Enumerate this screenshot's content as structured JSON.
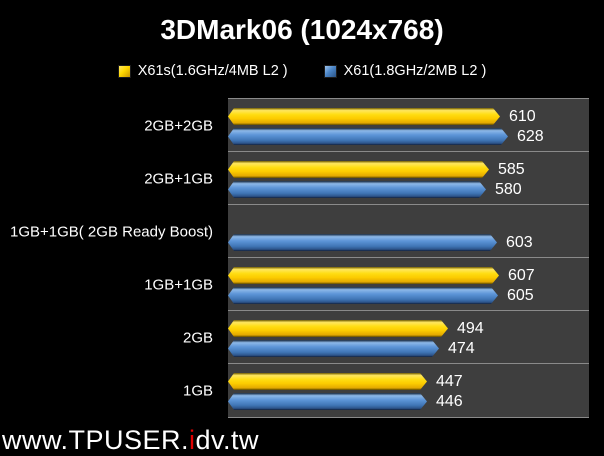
{
  "page_bg": "#000000",
  "chart_data": {
    "type": "bar",
    "orientation": "horizontal",
    "title": "3DMark06 (1024x768)",
    "categories": [
      "2GB+2GB",
      "2GB+1GB",
      "1GB+1GB( 2GB Ready Boost)",
      "1GB+1GB",
      "2GB",
      "1GB"
    ],
    "series": [
      {
        "name": "X61s(1.6GHz/4MB L2 )",
        "color": "#FFD800",
        "values": [
          610,
          585,
          null,
          607,
          494,
          447
        ]
      },
      {
        "name": "X61(1.8GHz/2MB L2 )",
        "color": "#4C86C8",
        "values": [
          628,
          580,
          603,
          605,
          474,
          446
        ]
      }
    ],
    "xlim": [
      0,
      810
    ],
    "legend_position": "top-center",
    "grid": "horizontal-band-separators",
    "plot_bg": "#3E3E3E",
    "separator_color": "#8a8a8a",
    "value_label_color": "#ffffff"
  },
  "watermark": {
    "prefix": "www.TPUSER.",
    "highlight": "i",
    "suffix": "dv.tw",
    "highlight_color": "#e00000"
  }
}
